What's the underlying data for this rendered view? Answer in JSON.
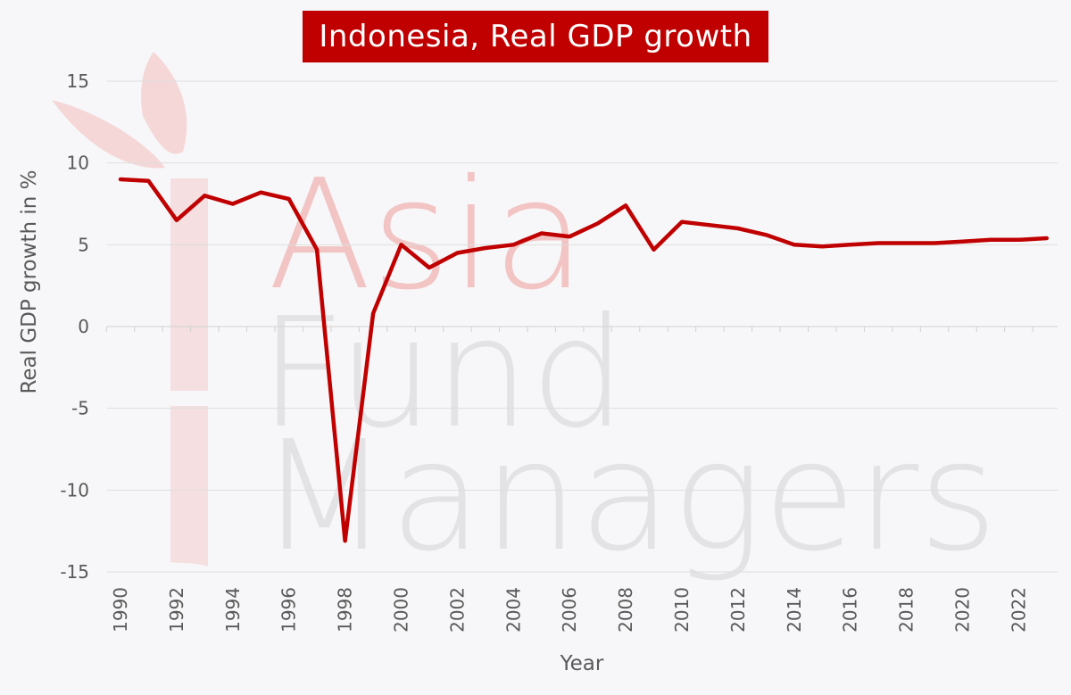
{
  "chart_data": {
    "type": "line",
    "title": "Indonesia, Real GDP growth",
    "xlabel": "Year",
    "ylabel": "Real GDP growth in %",
    "ylim": [
      -15,
      15
    ],
    "yticks": [
      15,
      10,
      5,
      0,
      -5,
      -10,
      -15
    ],
    "xticks": [
      1990,
      1992,
      1994,
      1996,
      1998,
      2000,
      2002,
      2004,
      2006,
      2008,
      2010,
      2012,
      2014,
      2016,
      2018,
      2020,
      2022
    ],
    "grid": true,
    "legend": "none",
    "series": [
      {
        "color": "#c00000",
        "x": [
          1990,
          1991,
          1992,
          1993,
          1994,
          1995,
          1996,
          1997,
          1998,
          1999,
          2000,
          2001,
          2002,
          2003,
          2004,
          2005,
          2006,
          2007,
          2008,
          2009,
          2010,
          2011,
          2012,
          2013,
          2014,
          2015,
          2016,
          2017,
          2018,
          2019,
          2020,
          2021,
          2022,
          2023
        ],
        "values": [
          9.0,
          8.9,
          6.5,
          8.0,
          7.5,
          8.2,
          7.8,
          4.7,
          -13.1,
          0.8,
          5.0,
          3.6,
          4.5,
          4.8,
          5.0,
          5.7,
          5.5,
          6.3,
          7.4,
          4.7,
          6.4,
          6.2,
          6.0,
          5.6,
          5.0,
          4.9,
          5.0,
          5.1,
          5.1,
          5.1,
          5.2,
          5.3,
          5.3,
          5.4
        ]
      }
    ]
  },
  "watermark": {
    "lines": [
      "Asia",
      "Fund",
      "Managers"
    ],
    "color_top": "#f2c4c4",
    "color_rest": "#e3e3e5",
    "graphic_color": "#f4cccc"
  }
}
